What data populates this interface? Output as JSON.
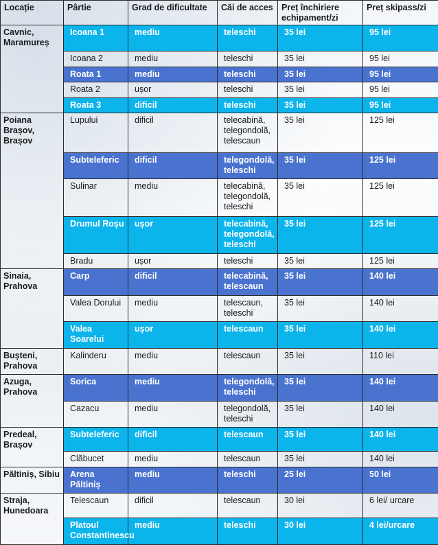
{
  "headers": [
    "Locație",
    "Pârtie",
    "Grad de dificultate",
    "Căi de acces",
    "Preț închiriere echipament/zi",
    "Preț skipass/zi"
  ],
  "groups": [
    {
      "location": "Cavnic, Maramureș",
      "rows": [
        {
          "slope": "Icoana 1",
          "difficulty": "mediu",
          "access": "teleschi",
          "rental": "35 lei",
          "skipass": "95 lei",
          "hl": "cyan",
          "h": 36
        },
        {
          "slope": "Icoana 2",
          "difficulty": "mediu",
          "access": "teleschi",
          "rental": "35 lei",
          "skipass": "95 lei",
          "hl": "",
          "h": 17
        },
        {
          "slope": "Roata 1",
          "difficulty": "mediu",
          "access": "teleschi",
          "rental": "35 lei",
          "skipass": "95 lei",
          "hl": "blue",
          "h": 17
        },
        {
          "slope": "Roata 2",
          "difficulty": "ușor",
          "access": "teleschi",
          "rental": "35 lei",
          "skipass": "95 lei",
          "hl": "",
          "h": 17
        },
        {
          "slope": "Roata 3",
          "difficulty": "dificil",
          "access": "teleschi",
          "rental": "35 lei",
          "skipass": "95 lei",
          "hl": "cyan",
          "h": 17
        }
      ]
    },
    {
      "location": "Poiana Brașov, Brașov",
      "rows": [
        {
          "slope": "Lupului",
          "difficulty": "dificil",
          "access": "telecabină, telegondolă, telescaun",
          "rental": "35 lei",
          "skipass": "125 lei",
          "hl": "",
          "h": 54
        },
        {
          "slope": "Subteleferic",
          "difficulty": "dificil",
          "access": "telegondolă, teleschi",
          "rental": "35 lei",
          "skipass": "125 lei",
          "hl": "blue",
          "h": 32
        },
        {
          "slope": "Sulinar",
          "difficulty": "mediu",
          "access": "telecabină, telegondolă, teleschi",
          "rental": "35 lei",
          "skipass": "125 lei",
          "hl": "",
          "h": 48
        },
        {
          "slope": "Drumul Roșu",
          "difficulty": "ușor",
          "access": "telecabină, telegondolă, teleschi",
          "rental": "35 lei",
          "skipass": "125 lei",
          "hl": "cyan",
          "h": 47
        },
        {
          "slope": "Bradu",
          "difficulty": "ușor",
          "access": "teleschi",
          "rental": "35 lei",
          "skipass": "125 lei",
          "hl": "",
          "h": 17
        }
      ]
    },
    {
      "location": "Sinaia, Prahova",
      "rows": [
        {
          "slope": "Carp",
          "difficulty": "dificil",
          "access": "telecabină, telescaun",
          "rental": "35 lei",
          "skipass": "140 lei",
          "hl": "blue",
          "h": 33
        },
        {
          "slope": "Valea Dorului",
          "difficulty": "mediu",
          "access": "telescaun, teleschi",
          "rental": "35 lei",
          "skipass": "140 lei",
          "hl": "",
          "h": 34
        },
        {
          "slope": "Valea Soarelui",
          "difficulty": "ușor",
          "access": "telescaun",
          "rental": "35 lei",
          "skipass": "140 lei",
          "hl": "cyan",
          "h": 17
        }
      ]
    },
    {
      "location": "Bușteni, Prahova",
      "rows": [
        {
          "slope": "Kalinderu",
          "difficulty": "mediu",
          "access": "telescaun",
          "rental": "35 lei",
          "skipass": "110 lei",
          "hl": "",
          "h": 33
        }
      ]
    },
    {
      "location": "Azuga, Prahova",
      "rows": [
        {
          "slope": "Sorica",
          "difficulty": "mediu",
          "access": "telegondolă, teleschi",
          "rental": "35 lei",
          "skipass": "140 lei",
          "hl": "blue",
          "h": 32
        },
        {
          "slope": "Cazacu",
          "difficulty": "mediu",
          "access": "telegondolă, teleschi",
          "rental": "35 lei",
          "skipass": "140 lei",
          "hl": "",
          "h": 34
        }
      ]
    },
    {
      "location": "Predeal, Brașov",
      "rows": [
        {
          "slope": "Subteleferic",
          "difficulty": "dificil",
          "access": "telescaun",
          "rental": "35 lei",
          "skipass": "140 lei",
          "hl": "cyan",
          "h": 33
        },
        {
          "slope": "Clăbucet",
          "difficulty": "mediu",
          "access": "telescaun",
          "rental": "35 lei",
          "skipass": "140 lei",
          "hl": "",
          "h": 17
        }
      ]
    },
    {
      "location": "Păltiniș, Sibiu",
      "rows": [
        {
          "slope": "Arena Păltiniș",
          "difficulty": "mediu",
          "access": "teleschi",
          "rental": "25 lei",
          "skipass": "50 lei",
          "hl": "blue",
          "h": 17
        }
      ]
    },
    {
      "location": "Straja, Hunedoara",
      "rows": [
        {
          "slope": "Telescaun",
          "difficulty": "dificil",
          "access": "telescaun",
          "rental": "30 lei",
          "skipass": "6 lei/ urcare",
          "hl": "",
          "h": 34
        },
        {
          "slope": "Platoul Constantinescu",
          "difficulty": "mediu",
          "access": "teleschi",
          "rental": "30 lei",
          "skipass": "4 lei/urcare",
          "hl": "cyan",
          "h": 34
        }
      ]
    }
  ],
  "colors": {
    "cyan": "#0cb4ec",
    "blue": "#4a72cf",
    "border": "#2a2a2a"
  }
}
